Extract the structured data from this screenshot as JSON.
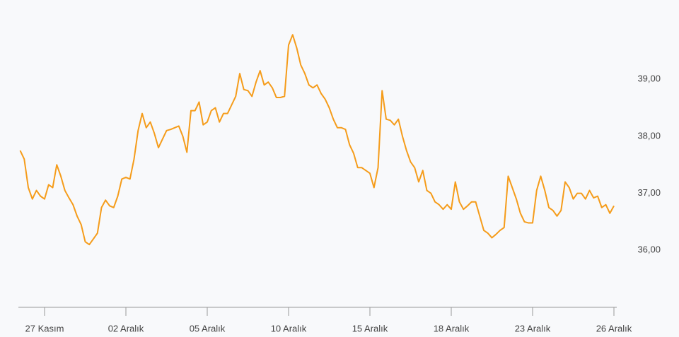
{
  "chart_data": {
    "type": "line",
    "categories": [
      null,
      null,
      null,
      null,
      null,
      null,
      "27 Kasım",
      null,
      null,
      null,
      null,
      null,
      null,
      null,
      null,
      null,
      null,
      null,
      null,
      null,
      null,
      null,
      null,
      null,
      null,
      null,
      "02 Aralık",
      null,
      null,
      null,
      null,
      null,
      null,
      null,
      null,
      null,
      null,
      null,
      null,
      null,
      null,
      null,
      null,
      null,
      null,
      null,
      "05 Aralık",
      null,
      null,
      null,
      null,
      null,
      null,
      null,
      null,
      null,
      null,
      null,
      null,
      null,
      null,
      null,
      null,
      null,
      null,
      null,
      "10 Aralık",
      null,
      null,
      null,
      null,
      null,
      null,
      null,
      null,
      null,
      null,
      null,
      null,
      null,
      null,
      null,
      null,
      null,
      null,
      null,
      "15 Aralık",
      null,
      null,
      null,
      null,
      null,
      null,
      null,
      null,
      null,
      null,
      null,
      null,
      null,
      null,
      null,
      null,
      null,
      null,
      null,
      "18 Aralık",
      null,
      null,
      null,
      null,
      null,
      null,
      null,
      null,
      null,
      null,
      null,
      null,
      null,
      null,
      null,
      null,
      null,
      null,
      null,
      "23 Aralık",
      null,
      null,
      null,
      null,
      null,
      null,
      null,
      null,
      null,
      null,
      null,
      null,
      null,
      null,
      null,
      null,
      null,
      null,
      null,
      "26 Aralık"
    ],
    "values": [
      37.75,
      37.6,
      37.1,
      36.9,
      37.05,
      36.95,
      36.9,
      37.15,
      37.1,
      37.5,
      37.3,
      37.05,
      36.92,
      36.8,
      36.6,
      36.45,
      36.15,
      36.1,
      36.2,
      36.3,
      36.75,
      36.88,
      36.78,
      36.75,
      36.95,
      37.25,
      37.28,
      37.25,
      37.6,
      38.1,
      38.4,
      38.15,
      38.25,
      38.05,
      37.8,
      37.95,
      38.1,
      38.12,
      38.15,
      38.18,
      38.0,
      37.72,
      38.45,
      38.45,
      38.6,
      38.2,
      38.25,
      38.45,
      38.5,
      38.25,
      38.4,
      38.4,
      38.55,
      38.7,
      39.1,
      38.82,
      38.8,
      38.7,
      38.95,
      39.15,
      38.9,
      38.95,
      38.85,
      38.68,
      38.68,
      38.7,
      39.6,
      39.78,
      39.55,
      39.25,
      39.1,
      38.9,
      38.85,
      38.9,
      38.75,
      38.65,
      38.5,
      38.3,
      38.15,
      38.15,
      38.12,
      37.85,
      37.7,
      37.45,
      37.45,
      37.4,
      37.35,
      37.1,
      37.45,
      38.8,
      38.3,
      38.28,
      38.2,
      38.3,
      38.0,
      37.75,
      37.55,
      37.45,
      37.2,
      37.4,
      37.05,
      37.0,
      36.85,
      36.8,
      36.72,
      36.8,
      36.72,
      37.2,
      36.85,
      36.72,
      36.78,
      36.85,
      36.85,
      36.6,
      36.35,
      36.3,
      36.22,
      36.28,
      36.35,
      36.4,
      37.3,
      37.1,
      36.9,
      36.65,
      36.5,
      36.48,
      36.48,
      37.05,
      37.3,
      37.05,
      36.75,
      36.7,
      36.6,
      36.7,
      37.2,
      37.1,
      36.9,
      37.0,
      37.0,
      36.9,
      37.05,
      36.92,
      36.95,
      36.75,
      36.8,
      36.65,
      36.78
    ],
    "color": "#f59c1a",
    "ylim": [
      35,
      40.39
    ],
    "yticks": [
      {
        "value": 36,
        "label": "36,00"
      },
      {
        "value": 37,
        "label": "37,00"
      },
      {
        "value": 38,
        "label": "38,00"
      },
      {
        "value": 39,
        "label": "39,00"
      }
    ],
    "grid": false
  }
}
